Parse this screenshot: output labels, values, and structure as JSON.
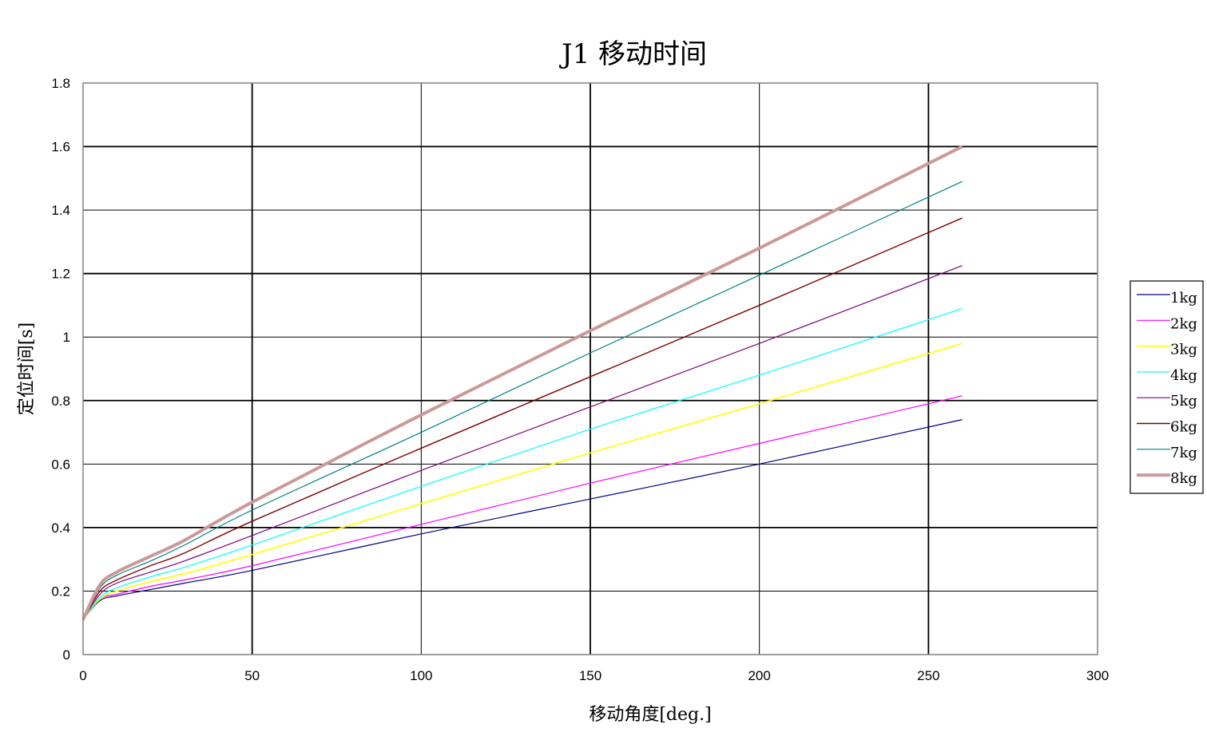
{
  "chart_data": {
    "type": "line",
    "title": "J1 移动时间",
    "xlabel": "移动角度[deg.]",
    "ylabel": "定位时间[s]",
    "xlim": [
      0,
      300
    ],
    "ylim": [
      0,
      1.8
    ],
    "xticks": [
      0,
      50,
      100,
      150,
      200,
      250,
      300
    ],
    "yticks": [
      0,
      0.2,
      0.4,
      0.6,
      0.8,
      1,
      1.2,
      1.4,
      1.6,
      1.8
    ],
    "ytick_labels": [
      "0",
      "0.2",
      "0.4",
      "0.6",
      "0.8",
      "1",
      "1.2",
      "1.4",
      "1.6",
      "1.8"
    ],
    "grid": true,
    "legend_position": "right",
    "x": [
      0,
      5,
      10,
      20,
      30,
      50,
      100,
      150,
      200,
      260
    ],
    "series": [
      {
        "name": "1kg",
        "color": "#000080",
        "width": 1.2,
        "values": [
          0.11,
          0.17,
          0.185,
          0.205,
          0.225,
          0.265,
          0.38,
          0.49,
          0.6,
          0.74
        ]
      },
      {
        "name": "2kg",
        "color": "#ff00ff",
        "width": 1.2,
        "values": [
          0.11,
          0.175,
          0.19,
          0.215,
          0.235,
          0.28,
          0.41,
          0.54,
          0.665,
          0.815
        ]
      },
      {
        "name": "3kg",
        "color": "#ffff00",
        "width": 1.6,
        "values": [
          0.11,
          0.175,
          0.2,
          0.23,
          0.255,
          0.315,
          0.475,
          0.635,
          0.79,
          0.98
        ]
      },
      {
        "name": "4kg",
        "color": "#00ffff",
        "width": 1.2,
        "values": [
          0.11,
          0.18,
          0.21,
          0.245,
          0.275,
          0.345,
          0.53,
          0.71,
          0.88,
          1.09
        ]
      },
      {
        "name": "5kg",
        "color": "#800080",
        "width": 1.2,
        "values": [
          0.11,
          0.19,
          0.225,
          0.26,
          0.295,
          0.375,
          0.58,
          0.78,
          0.98,
          1.225
        ]
      },
      {
        "name": "6kg",
        "color": "#800000",
        "width": 1.4,
        "values": [
          0.11,
          0.2,
          0.235,
          0.28,
          0.32,
          0.42,
          0.65,
          0.875,
          1.1,
          1.375
        ]
      },
      {
        "name": "7kg",
        "color": "#008080",
        "width": 1.2,
        "values": [
          0.11,
          0.21,
          0.25,
          0.295,
          0.345,
          0.455,
          0.7,
          0.95,
          1.195,
          1.49
        ]
      },
      {
        "name": "8kg",
        "color": "#cc9999",
        "width": 4,
        "values": [
          0.11,
          0.22,
          0.26,
          0.31,
          0.36,
          0.48,
          0.755,
          1.02,
          1.28,
          1.6
        ]
      }
    ]
  }
}
